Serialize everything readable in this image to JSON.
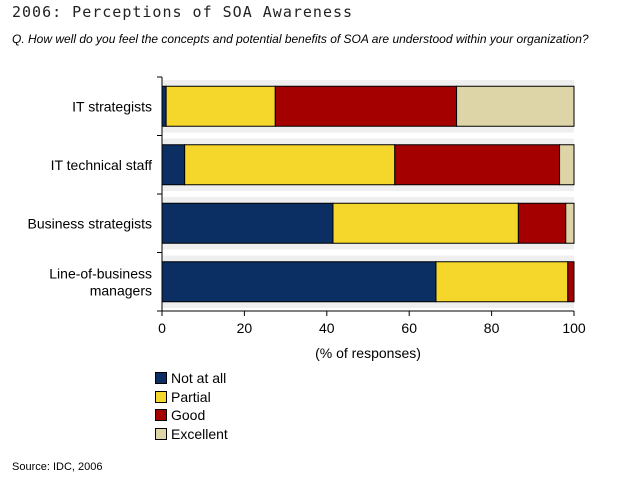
{
  "title": "2006: Perceptions of SOA Awareness",
  "question": "Q. How well do you feel the concepts and potential benefits of SOA are understood within your organization?",
  "source": "Source: IDC, 2006",
  "chart_data": {
    "type": "bar",
    "orientation": "horizontal",
    "stacked": true,
    "title": "2006: Perceptions of SOA Awareness",
    "xlabel": "(% of responses)",
    "ylabel": "",
    "xlim": [
      0,
      100
    ],
    "xticks": [
      0,
      20,
      40,
      60,
      80,
      100
    ],
    "grid": false,
    "legend_position": "bottom-left",
    "categories": [
      "IT strategists",
      "IT technical staff",
      "Business strategists",
      "Line-of-business managers"
    ],
    "category_lines": [
      [
        "IT strategists"
      ],
      [
        "IT technical staff"
      ],
      [
        "Business strategists"
      ],
      [
        "Line-of-business",
        "managers"
      ]
    ],
    "series": [
      {
        "name": "Not at all",
        "color": "#0b2f63",
        "values": [
          1,
          5.5,
          41.5,
          66.5
        ]
      },
      {
        "name": "Partial",
        "color": "#f5d62a",
        "values": [
          26.5,
          51,
          45,
          32
        ]
      },
      {
        "name": "Good",
        "color": "#a50000",
        "values": [
          44,
          40,
          11.5,
          1.5
        ]
      },
      {
        "name": "Excellent",
        "color": "#ddd5a8",
        "values": [
          28.5,
          3.5,
          2,
          0
        ]
      }
    ]
  }
}
